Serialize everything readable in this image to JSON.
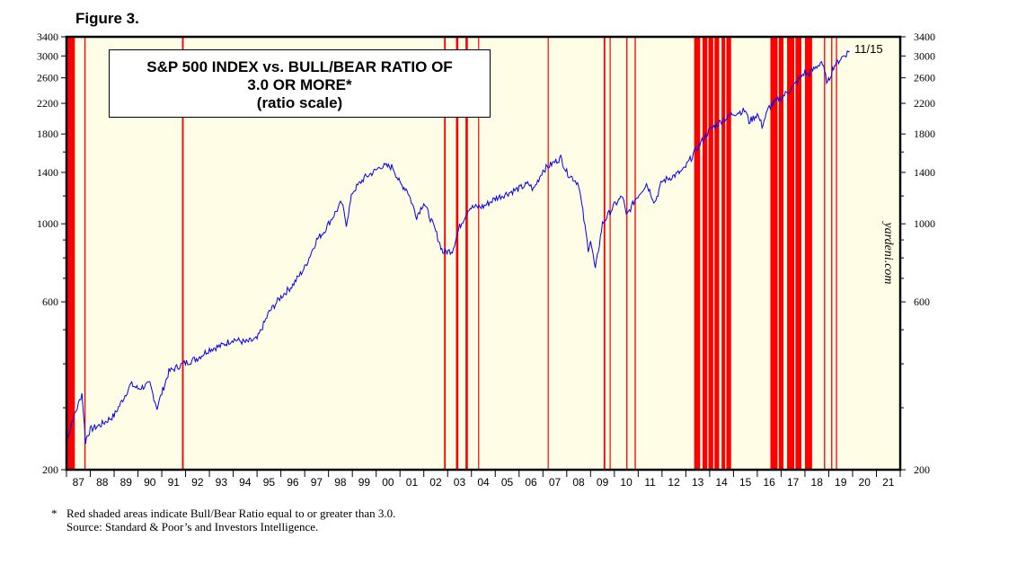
{
  "figure_label": "Figure 3.",
  "title_lines": [
    "S&P 500 INDEX vs. BULL/BEAR RATIO OF",
    "3.0 OR MORE*",
    "(ratio scale)"
  ],
  "date_label": "11/15",
  "watermark": "yardeni.com",
  "footnote": {
    "star": "*",
    "line1": "Red shaded areas indicate Bull/Bear Ratio equal to or greater than 3.0.",
    "line2": "Source: Standard & Poor’s and Investors Intelligence."
  },
  "colors": {
    "background": "#fffde6",
    "series": "#0000ee",
    "shading": "#ff0000"
  },
  "chart_data": {
    "type": "line",
    "scale": "log",
    "ylim": [
      200,
      3400
    ],
    "y_ticks": [
      200,
      600,
      1000,
      1400,
      1800,
      2200,
      2600,
      3000,
      3400
    ],
    "xlim": [
      1987,
      2022
    ],
    "x_tick_labels": [
      "87",
      "88",
      "89",
      "90",
      "91",
      "92",
      "93",
      "94",
      "95",
      "96",
      "97",
      "98",
      "99",
      "00",
      "01",
      "02",
      "03",
      "04",
      "05",
      "06",
      "07",
      "08",
      "09",
      "10",
      "11",
      "12",
      "13",
      "14",
      "15",
      "16",
      "17",
      "18",
      "19",
      "20",
      "21"
    ],
    "series": [
      {
        "x": [
          1987.0,
          1987.2,
          1987.45,
          1987.65,
          1987.8,
          1987.87,
          1988.0,
          1988.5,
          1989.0,
          1989.5,
          1989.7,
          1990.0,
          1990.5,
          1990.8,
          1991.0,
          1991.3,
          1991.9,
          1992.5,
          1993.0,
          1993.5,
          1994.0,
          1994.5,
          1995.0,
          1995.5,
          1996.0,
          1996.5,
          1997.0,
          1997.5,
          1997.8,
          1998.0,
          1998.55,
          1998.75,
          1999.0,
          1999.5,
          2000.0,
          2000.2,
          2000.7,
          2001.0,
          2001.3,
          2001.7,
          2002.0,
          2002.5,
          2002.8,
          2003.2,
          2003.5,
          2003.9,
          2004.5,
          2005.0,
          2005.5,
          2006.0,
          2006.4,
          2006.6,
          2007.0,
          2007.5,
          2007.75,
          2008.0,
          2008.5,
          2008.9,
          2009.0,
          2009.2,
          2009.5,
          2010.0,
          2010.35,
          2010.5,
          2010.9,
          2011.35,
          2011.7,
          2012.0,
          2012.5,
          2012.9,
          2013.5,
          2014.0,
          2014.5,
          2015.0,
          2015.5,
          2015.65,
          2016.0,
          2016.2,
          2016.5,
          2017.0,
          2017.5,
          2018.0,
          2018.1,
          2018.5,
          2018.7,
          2018.95,
          2019.2,
          2019.5,
          2019.87
        ],
        "y": [
          240,
          270,
          300,
          330,
          240,
          250,
          260,
          270,
          285,
          330,
          350,
          340,
          350,
          300,
          330,
          380,
          400,
          415,
          440,
          450,
          470,
          460,
          470,
          560,
          620,
          670,
          750,
          900,
          950,
          1000,
          1150,
          1000,
          1230,
          1350,
          1420,
          1460,
          1450,
          1300,
          1250,
          1050,
          1150,
          950,
          830,
          840,
          980,
          1110,
          1120,
          1180,
          1220,
          1260,
          1300,
          1250,
          1420,
          1500,
          1540,
          1400,
          1300,
          850,
          900,
          740,
          1000,
          1130,
          1200,
          1050,
          1180,
          1300,
          1150,
          1320,
          1370,
          1420,
          1650,
          1850,
          1960,
          2060,
          2100,
          1950,
          2050,
          1900,
          2150,
          2280,
          2450,
          2700,
          2650,
          2800,
          2900,
          2500,
          2800,
          2950,
          3100
        ]
      }
    ],
    "shaded_periods": [
      [
        1987.0,
        1987.35
      ],
      [
        1987.75,
        1987.8
      ],
      [
        1991.85,
        1991.92
      ],
      [
        2002.85,
        2002.92
      ],
      [
        2003.35,
        2003.45
      ],
      [
        2003.75,
        2003.85
      ],
      [
        2004.28,
        2004.31
      ],
      [
        2007.2,
        2007.24
      ],
      [
        2009.55,
        2009.62
      ],
      [
        2009.8,
        2009.84
      ],
      [
        2010.5,
        2010.55
      ],
      [
        2010.85,
        2010.9
      ],
      [
        2013.35,
        2013.6
      ],
      [
        2013.7,
        2013.9
      ],
      [
        2013.95,
        2014.15
      ],
      [
        2014.2,
        2014.4
      ],
      [
        2014.5,
        2014.65
      ],
      [
        2014.7,
        2014.9
      ],
      [
        2016.55,
        2016.85
      ],
      [
        2016.9,
        2017.1
      ],
      [
        2017.25,
        2017.55
      ],
      [
        2017.6,
        2017.85
      ],
      [
        2018.0,
        2018.3
      ],
      [
        2018.8,
        2018.85
      ],
      [
        2019.1,
        2019.15
      ],
      [
        2019.3,
        2019.35
      ]
    ]
  }
}
